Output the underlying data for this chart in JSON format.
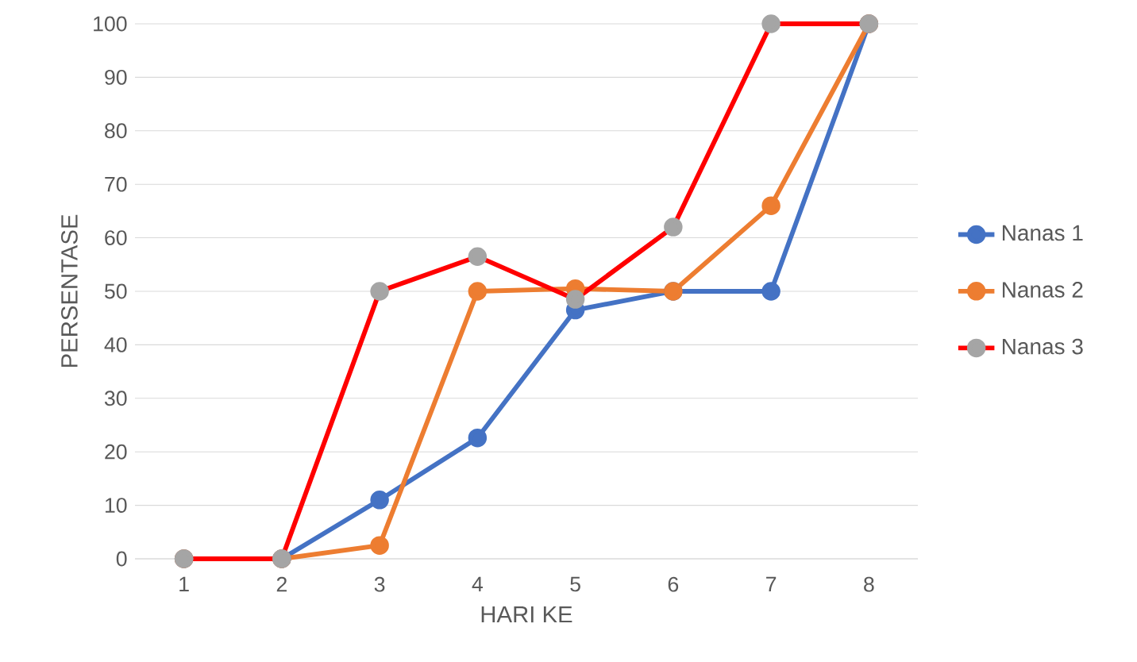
{
  "chart_data": {
    "type": "line",
    "xlabel": "HARI KE",
    "ylabel": "PERSENTASE",
    "categories": [
      "1",
      "2",
      "3",
      "4",
      "5",
      "6",
      "7",
      "8"
    ],
    "series": [
      {
        "name": "Nanas 1",
        "color": "#4472c4",
        "values": [
          0,
          0,
          11,
          22.6,
          46.5,
          50,
          50,
          100
        ]
      },
      {
        "name": "Nanas 2",
        "color": "#ed7d31",
        "values": [
          0,
          0,
          2.5,
          50,
          50.5,
          50,
          66,
          100
        ]
      },
      {
        "name": "Nanas 3",
        "color": "#ff0000",
        "values": [
          0,
          0,
          50,
          56.5,
          48.5,
          62,
          100,
          100
        ]
      }
    ],
    "ylim": [
      0,
      100
    ],
    "yticks": [
      0,
      10,
      20,
      30,
      40,
      50,
      60,
      70,
      80,
      90,
      100
    ],
    "grid": "y",
    "legend": "right",
    "marker": "circle",
    "line_style": "solid"
  }
}
